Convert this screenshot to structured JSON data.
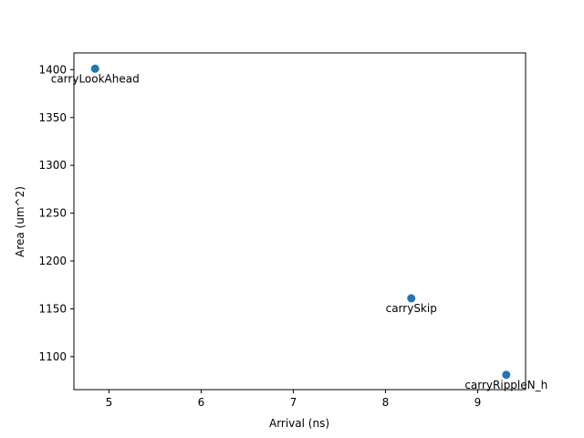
{
  "chart_data": {
    "type": "scatter",
    "xlabel": "Arrival (ns)",
    "ylabel": "Area (um^2)",
    "xlim": [
      4.62,
      9.52
    ],
    "ylim": [
      1065.5,
      1417.5
    ],
    "xticks": [
      5,
      6,
      7,
      8,
      9
    ],
    "yticks": [
      1100,
      1150,
      1200,
      1250,
      1300,
      1350,
      1400
    ],
    "grid": false,
    "marker_color": "#1f77b4",
    "points": [
      {
        "label": "carryLookAhead",
        "x": 4.85,
        "y": 1401.0
      },
      {
        "label": "carrySkip",
        "x": 8.28,
        "y": 1161.0
      },
      {
        "label": "carryRippleN_h",
        "x": 9.31,
        "y": 1081.0
      }
    ]
  }
}
